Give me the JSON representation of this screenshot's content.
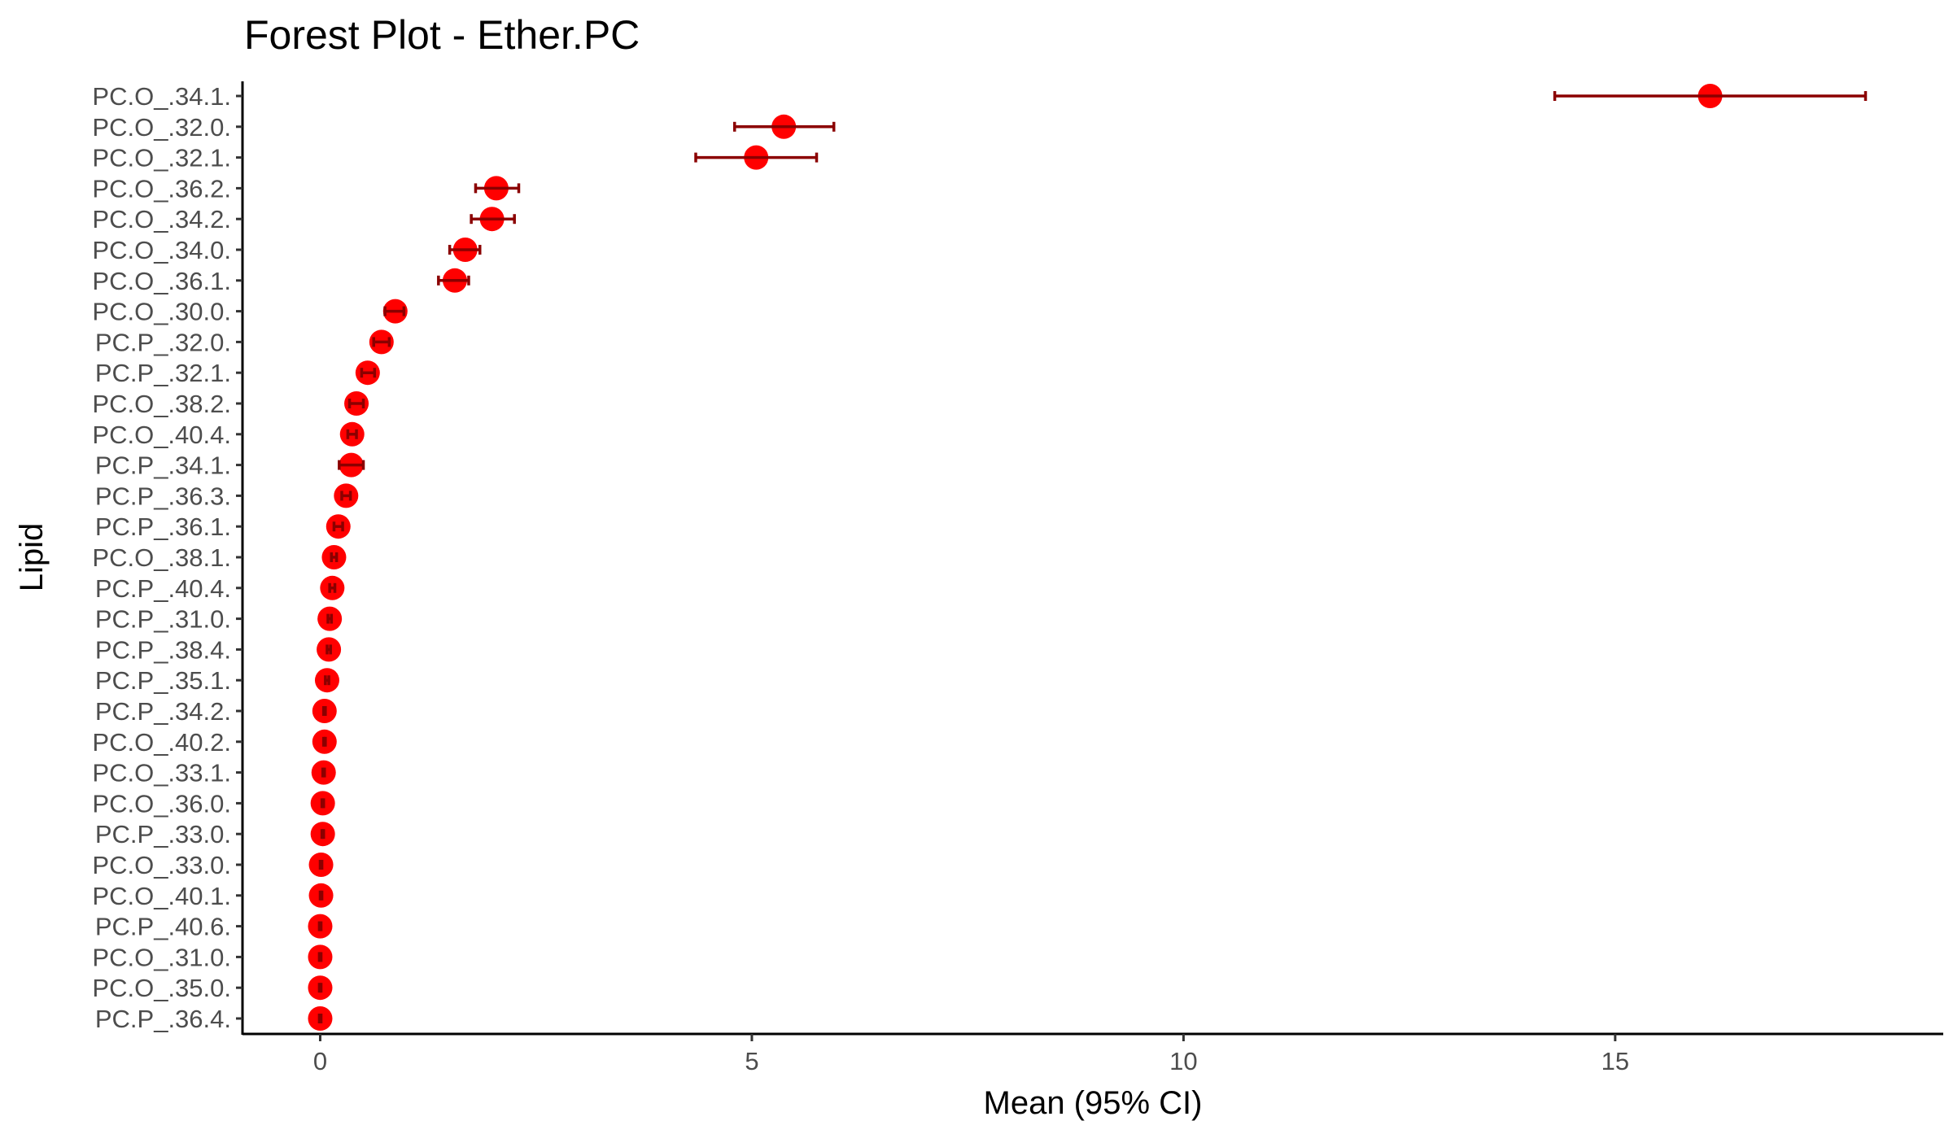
{
  "chart_data": {
    "type": "forest",
    "title": "Forest Plot - Ether.PC",
    "xlabel": "Mean (95% CI)",
    "ylabel": "Lipid",
    "xlim": [
      -0.9,
      18.8
    ],
    "xticks": [
      0,
      5,
      10,
      15
    ],
    "grid": false,
    "legend": "none",
    "colors": {
      "point": "#ff0000",
      "errorbar": "#8b0000",
      "axis": "#000000"
    },
    "categories": [
      "PC.O_.34.1.",
      "PC.O_.32.0.",
      "PC.O_.32.1.",
      "PC.O_.36.2.",
      "PC.O_.34.2.",
      "PC.O_.34.0.",
      "PC.O_.36.1.",
      "PC.O_.30.0.",
      "PC.P_.32.0.",
      "PC.P_.32.1.",
      "PC.O_.38.2.",
      "PC.O_.40.4.",
      "PC.P_.34.1.",
      "PC.P_.36.3.",
      "PC.P_.36.1.",
      "PC.O_.38.1.",
      "PC.P_.40.4.",
      "PC.P_.31.0.",
      "PC.P_.38.4.",
      "PC.P_.35.1.",
      "PC.P_.34.2.",
      "PC.O_.40.2.",
      "PC.O_.33.1.",
      "PC.O_.36.0.",
      "PC.P_.33.0.",
      "PC.O_.33.0.",
      "PC.O_.40.1.",
      "PC.P_.40.6.",
      "PC.O_.31.0.",
      "PC.O_.35.0.",
      "PC.P_.36.4."
    ],
    "mean": [
      16.1,
      5.37,
      5.05,
      2.04,
      1.99,
      1.68,
      1.56,
      0.87,
      0.71,
      0.55,
      0.42,
      0.37,
      0.36,
      0.3,
      0.21,
      0.16,
      0.14,
      0.11,
      0.1,
      0.08,
      0.05,
      0.05,
      0.04,
      0.03,
      0.03,
      0.01,
      0.01,
      0.0,
      0.0,
      0.0,
      0.0
    ],
    "lower": [
      14.3,
      4.8,
      4.35,
      1.8,
      1.75,
      1.5,
      1.37,
      0.75,
      0.62,
      0.48,
      0.34,
      0.32,
      0.22,
      0.25,
      0.16,
      0.13,
      0.11,
      0.09,
      0.08,
      0.06,
      0.04,
      0.04,
      0.03,
      0.02,
      0.02,
      0.0,
      0.0,
      -0.01,
      -0.01,
      -0.01,
      -0.01
    ],
    "upper": [
      17.9,
      5.95,
      5.75,
      2.3,
      2.25,
      1.85,
      1.72,
      0.97,
      0.8,
      0.63,
      0.5,
      0.42,
      0.5,
      0.35,
      0.26,
      0.19,
      0.17,
      0.13,
      0.12,
      0.1,
      0.06,
      0.06,
      0.05,
      0.04,
      0.04,
      0.02,
      0.02,
      0.01,
      0.01,
      0.01,
      0.01
    ]
  }
}
